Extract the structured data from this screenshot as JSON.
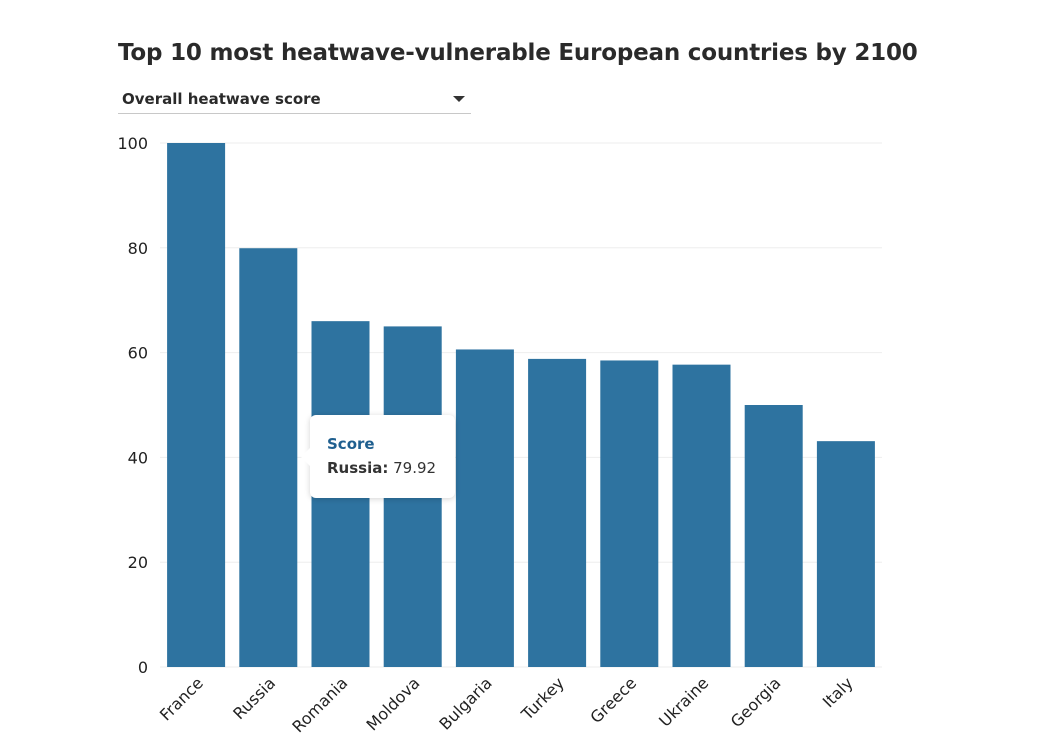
{
  "header": {
    "title": "Top 10 most heatwave-vulnerable European countries by 2100"
  },
  "metric_select": {
    "selected": "Overall heatwave score",
    "icon": "caret-down-icon"
  },
  "colors": {
    "bar": "#2e73a0",
    "grid": "#eeeeee",
    "axis_text": "#222222",
    "tooltip_title": "#1f5f8f"
  },
  "tooltip": {
    "title": "Score",
    "country": "Russia",
    "separator": ":",
    "value": "79.92"
  },
  "chart_data": {
    "type": "bar",
    "title": "Top 10 most heatwave-vulnerable European countries by 2100",
    "xlabel": "",
    "ylabel": "",
    "categories": [
      "France",
      "Russia",
      "Romania",
      "Moldova",
      "Bulgaria",
      "Turkey",
      "Greece",
      "Ukraine",
      "Georgia",
      "Italy"
    ],
    "series": [
      {
        "values": [
          100,
          79.92,
          66,
          65,
          60.6,
          58.8,
          58.5,
          57.7,
          50,
          43.1
        ]
      }
    ],
    "ylim": [
      0,
      100
    ],
    "yticks": [
      "0",
      "20",
      "40",
      "60",
      "80",
      "100"
    ],
    "grid": true,
    "legend": "none",
    "highlighted_category": "Russia"
  }
}
